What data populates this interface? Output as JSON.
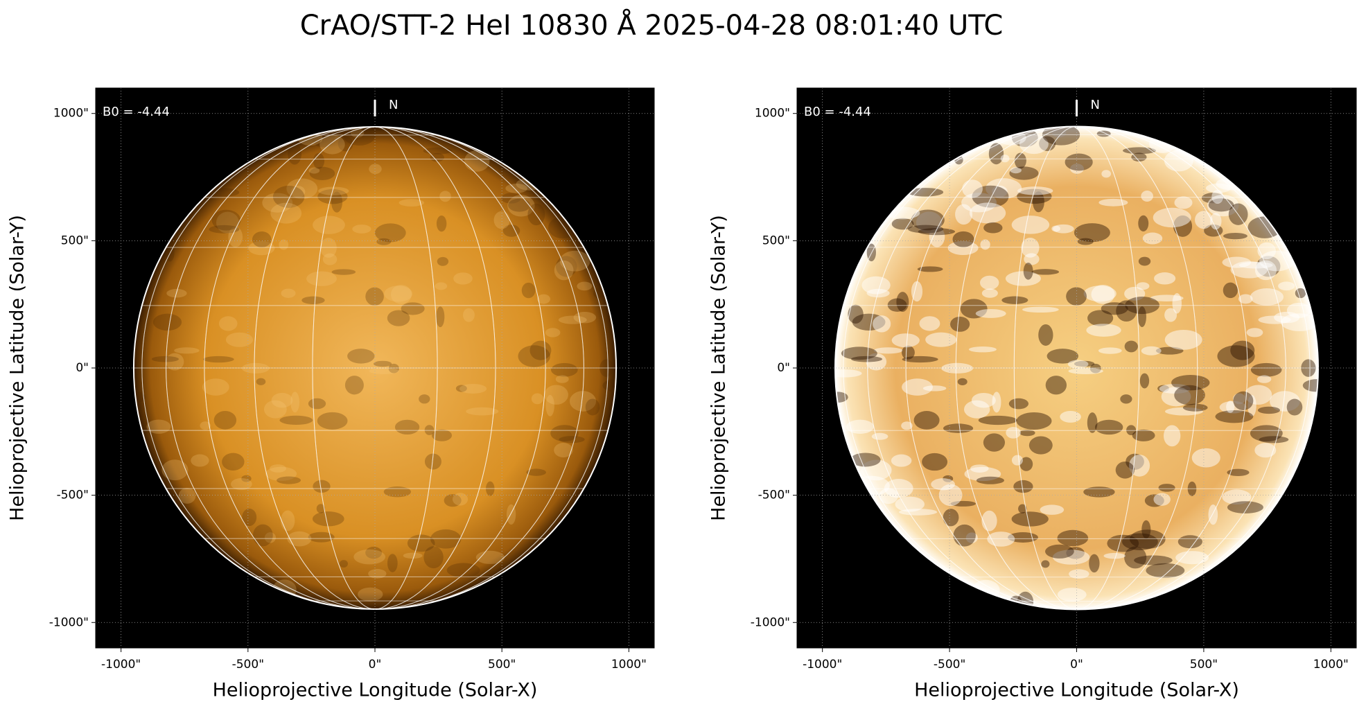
{
  "title": "CrAO/STT-2 HeI 10830 Å 2025-04-28 08:01:40 UTC",
  "chart_data": [
    {
      "type": "image",
      "colormap": "sdoaia1600",
      "contrast": "normal",
      "annotation": "B0 = -4.44",
      "north_label": "N",
      "xlabel": "Helioprojective Longitude (Solar-X)",
      "ylabel": "Helioprojective Latitude (Solar-Y)",
      "xlim": [
        -1100,
        1100
      ],
      "ylim": [
        -1100,
        1100
      ],
      "limb_radius": 950,
      "xticks": [
        {
          "value": -1000,
          "label": "-1000\""
        },
        {
          "value": -500,
          "label": "-500\""
        },
        {
          "value": 0,
          "label": "0\""
        },
        {
          "value": 500,
          "label": "500\""
        },
        {
          "value": 1000,
          "label": "1000\""
        }
      ],
      "yticks": [
        {
          "value": -1000,
          "label": "-1000\""
        },
        {
          "value": -500,
          "label": "-500\""
        },
        {
          "value": 0,
          "label": "0\""
        },
        {
          "value": 500,
          "label": "500\""
        },
        {
          "value": 1000,
          "label": "1000\""
        }
      ],
      "grid": true
    },
    {
      "type": "image",
      "colormap": "sdoaia1600",
      "contrast": "enhanced",
      "annotation": "B0 = -4.44",
      "north_label": "N",
      "xlabel": "Helioprojective Longitude (Solar-X)",
      "ylabel": "Helioprojective Latitude (Solar-Y)",
      "xlim": [
        -1100,
        1100
      ],
      "ylim": [
        -1100,
        1100
      ],
      "limb_radius": 950,
      "xticks": [
        {
          "value": -1000,
          "label": "-1000\""
        },
        {
          "value": -500,
          "label": "-500\""
        },
        {
          "value": 0,
          "label": "0\""
        },
        {
          "value": 500,
          "label": "500\""
        },
        {
          "value": 1000,
          "label": "1000\""
        }
      ],
      "yticks": [
        {
          "value": -1000,
          "label": "-1000\""
        },
        {
          "value": -500,
          "label": "-500\""
        },
        {
          "value": 0,
          "label": "0\""
        },
        {
          "value": 500,
          "label": "500\""
        },
        {
          "value": 1000,
          "label": "1000\""
        }
      ],
      "grid": true
    }
  ]
}
